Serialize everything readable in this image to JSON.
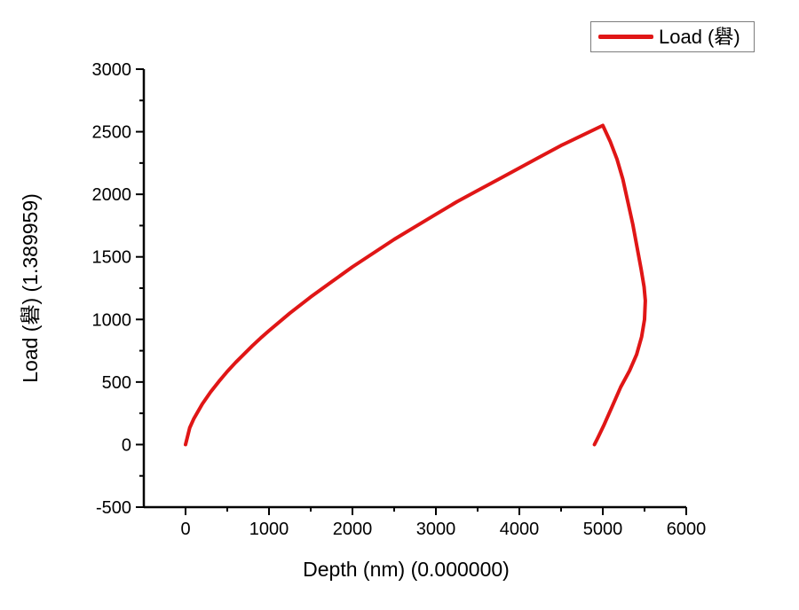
{
  "legend": {
    "label": "Load (礜)",
    "border_color": "#7d7d7d"
  },
  "colors": {
    "series": "#e01616",
    "axis": "#000000",
    "text": "#000000",
    "background": "#ffffff"
  },
  "chart_data": {
    "type": "line",
    "title": "",
    "xlabel": "Depth (nm) (0.000000)",
    "ylabel": "Load (礜) (1.389959)",
    "xlim": [
      -500,
      6000
    ],
    "ylim": [
      -500,
      3000
    ],
    "x_major_ticks": [
      0,
      1000,
      2000,
      3000,
      4000,
      5000,
      6000
    ],
    "x_minor_ticks": [
      500,
      1500,
      2500,
      3500,
      4500,
      5500
    ],
    "y_major_ticks": [
      -500,
      0,
      500,
      1000,
      1500,
      2000,
      2500,
      3000
    ],
    "y_minor_ticks": [
      -250,
      250,
      750,
      1250,
      1750,
      2250,
      2750
    ],
    "grid": false,
    "legend_position": "top-right",
    "legend_entries": [
      "Load (礜)"
    ],
    "series": [
      {
        "name": "Load (礜)",
        "color": "#e01616",
        "points": [
          [
            0,
            0
          ],
          [
            50,
            134
          ],
          [
            100,
            208
          ],
          [
            200,
            324
          ],
          [
            300,
            420
          ],
          [
            400,
            505
          ],
          [
            500,
            584
          ],
          [
            600,
            656
          ],
          [
            700,
            723
          ],
          [
            800,
            789
          ],
          [
            900,
            851
          ],
          [
            1000,
            910
          ],
          [
            1250,
            1050
          ],
          [
            1500,
            1180
          ],
          [
            1750,
            1300
          ],
          [
            2000,
            1420
          ],
          [
            2250,
            1530
          ],
          [
            2500,
            1640
          ],
          [
            2750,
            1740
          ],
          [
            3000,
            1840
          ],
          [
            3250,
            1940
          ],
          [
            3500,
            2030
          ],
          [
            3750,
            2120
          ],
          [
            4000,
            2210
          ],
          [
            4250,
            2300
          ],
          [
            4500,
            2390
          ],
          [
            4750,
            2470
          ],
          [
            5000,
            2550
          ],
          [
            5090,
            2420
          ],
          [
            5170,
            2280
          ],
          [
            5240,
            2120
          ],
          [
            5300,
            1940
          ],
          [
            5360,
            1760
          ],
          [
            5410,
            1580
          ],
          [
            5460,
            1400
          ],
          [
            5495,
            1260
          ],
          [
            5510,
            1150
          ],
          [
            5500,
            1000
          ],
          [
            5465,
            860
          ],
          [
            5405,
            720
          ],
          [
            5320,
            590
          ],
          [
            5215,
            460
          ],
          [
            5110,
            300
          ],
          [
            5010,
            150
          ],
          [
            4945,
            60
          ],
          [
            4900,
            0
          ]
        ]
      }
    ]
  }
}
